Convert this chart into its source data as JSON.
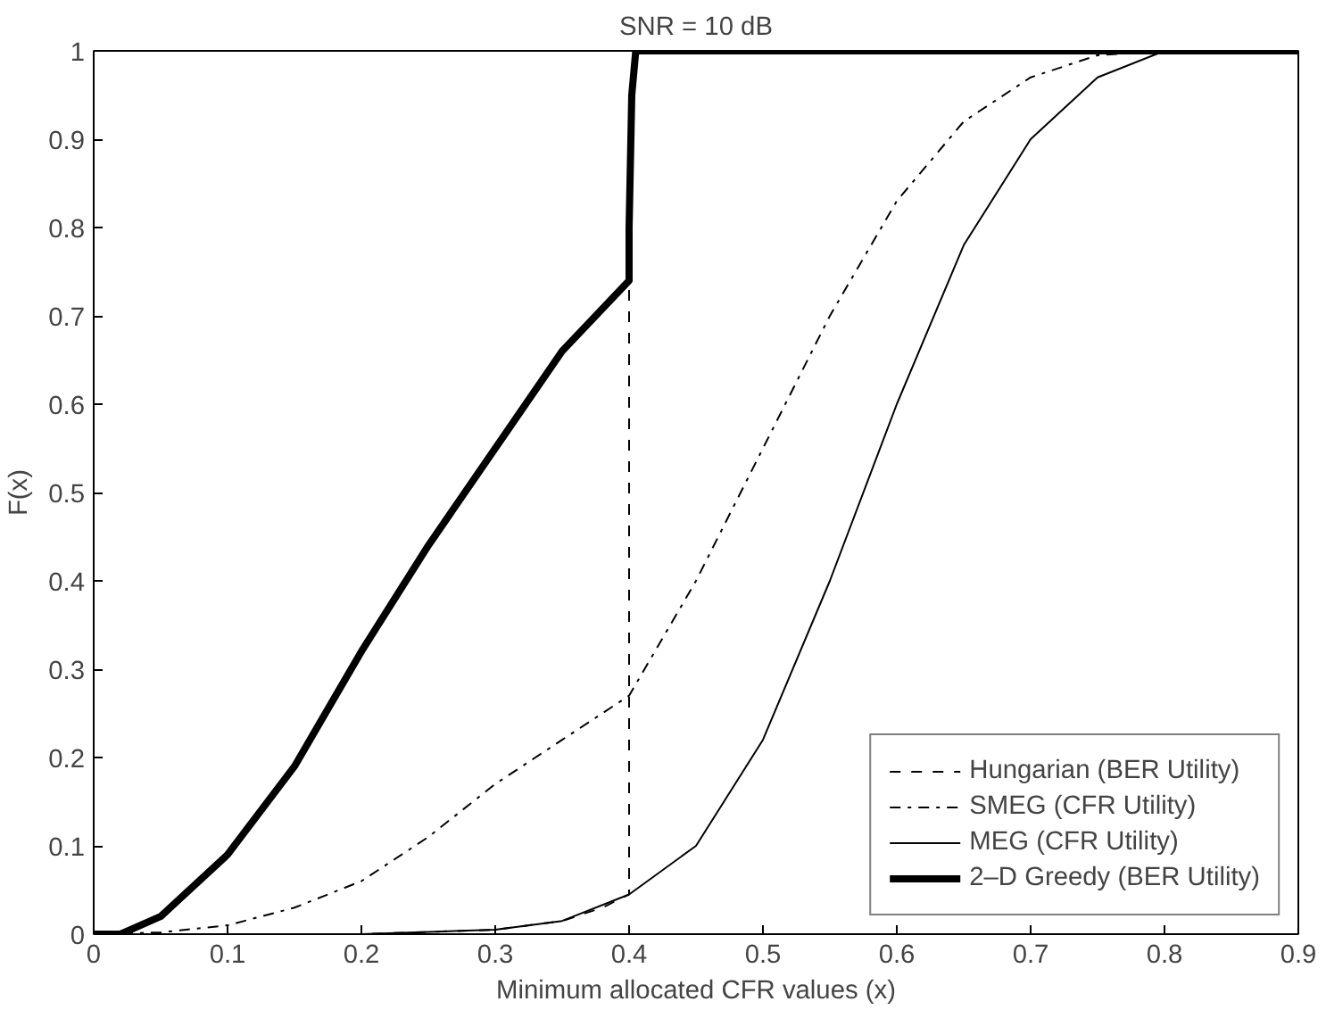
{
  "chart_data": {
    "type": "line",
    "title": "SNR = 10 dB",
    "xlabel": "Minimum allocated CFR values (x)",
    "ylabel": "F(x)",
    "xlim": [
      0,
      0.9
    ],
    "ylim": [
      0,
      1
    ],
    "xticks": [
      0,
      0.1,
      0.2,
      0.3,
      0.4,
      0.5,
      0.6,
      0.7,
      0.8,
      0.9
    ],
    "yticks": [
      0,
      0.1,
      0.2,
      0.3,
      0.4,
      0.5,
      0.6,
      0.7,
      0.8,
      0.9,
      1
    ],
    "grid": false,
    "legend": "bottom right",
    "marker": "none",
    "series": [
      {
        "name": "Hungarian (BER Utility)",
        "color": "#000000",
        "line_style": "dashed",
        "x": [
          0,
          0.2,
          0.3,
          0.35,
          0.38,
          0.4,
          0.4
        ],
        "values": [
          0,
          0,
          0.005,
          0.015,
          0.03,
          0.045,
          0.74
        ]
      },
      {
        "name": "SMEG (CFR Utility)",
        "color": "#000000",
        "line_style": "dashdot",
        "x": [
          0,
          0.05,
          0.1,
          0.15,
          0.2,
          0.25,
          0.3,
          0.35,
          0.4,
          0.45,
          0.5,
          0.55,
          0.6,
          0.65,
          0.7,
          0.75,
          0.8,
          0.9
        ],
        "values": [
          0,
          0.002,
          0.01,
          0.03,
          0.06,
          0.11,
          0.17,
          0.22,
          0.27,
          0.4,
          0.55,
          0.7,
          0.83,
          0.92,
          0.97,
          0.995,
          1,
          1
        ]
      },
      {
        "name": "MEG (CFR Utility)",
        "color": "#000000",
        "line_style": "solid",
        "x": [
          0,
          0.2,
          0.3,
          0.35,
          0.4,
          0.45,
          0.5,
          0.55,
          0.6,
          0.65,
          0.7,
          0.75,
          0.8,
          0.9
        ],
        "values": [
          0,
          0,
          0.005,
          0.015,
          0.045,
          0.1,
          0.22,
          0.4,
          0.6,
          0.78,
          0.9,
          0.97,
          1,
          1
        ]
      },
      {
        "name": "2–D Greedy (BER Utility)",
        "color": "#000000",
        "line_style": "solid",
        "x": [
          0,
          0.02,
          0.05,
          0.1,
          0.15,
          0.2,
          0.25,
          0.3,
          0.35,
          0.4,
          0.4,
          0.402,
          0.405,
          0.41,
          0.9
        ],
        "values": [
          0,
          0,
          0.02,
          0.09,
          0.19,
          0.32,
          0.44,
          0.55,
          0.66,
          0.74,
          0.8,
          0.95,
          1,
          1,
          1
        ]
      }
    ]
  }
}
